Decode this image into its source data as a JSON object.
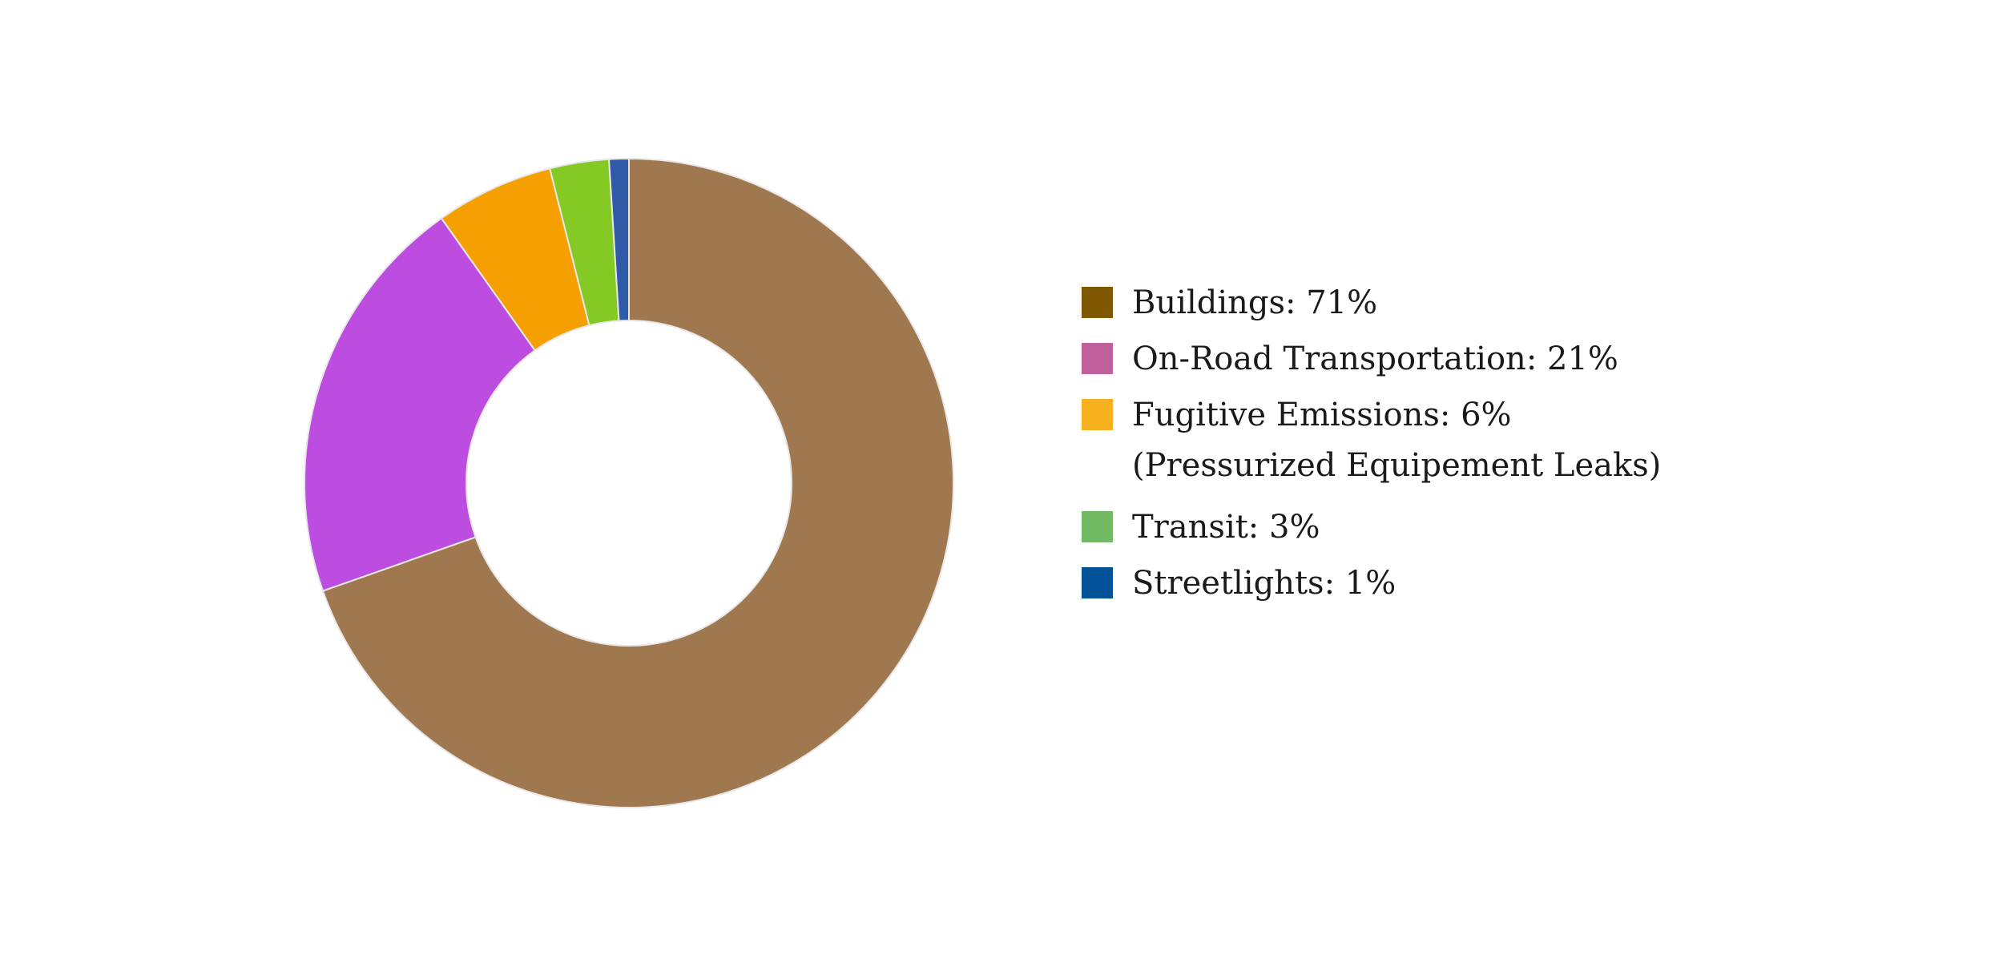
{
  "chart_data": {
    "type": "pie",
    "style": "donut",
    "legend_position": "right",
    "slices": [
      {
        "label": "Buildings: 71%",
        "category": "Buildings",
        "value": 71,
        "color": "#a07850",
        "legend_color": "#7f5700"
      },
      {
        "label": "On-Road Transportation: 21%",
        "category": "On-Road Transportation",
        "value": 21,
        "color": "#bd4de0",
        "legend_color": "#c0619e"
      },
      {
        "label": "Fugitive Emissions: 6%",
        "sublabel": "(Pressurized Equipement Leaks)",
        "category": "Fugitive Emissions",
        "value": 6,
        "color": "#f5a000",
        "legend_color": "#f7b11e"
      },
      {
        "label": "Transit: 3%",
        "category": "Transit",
        "value": 3,
        "color": "#84c924",
        "legend_color": "#72b964"
      },
      {
        "label": "Streetlights: 1%",
        "category": "Streetlights",
        "value": 1,
        "color": "#2f5aa8",
        "legend_color": "#02529a"
      }
    ],
    "slice_border_color": "#e8e8e8"
  }
}
